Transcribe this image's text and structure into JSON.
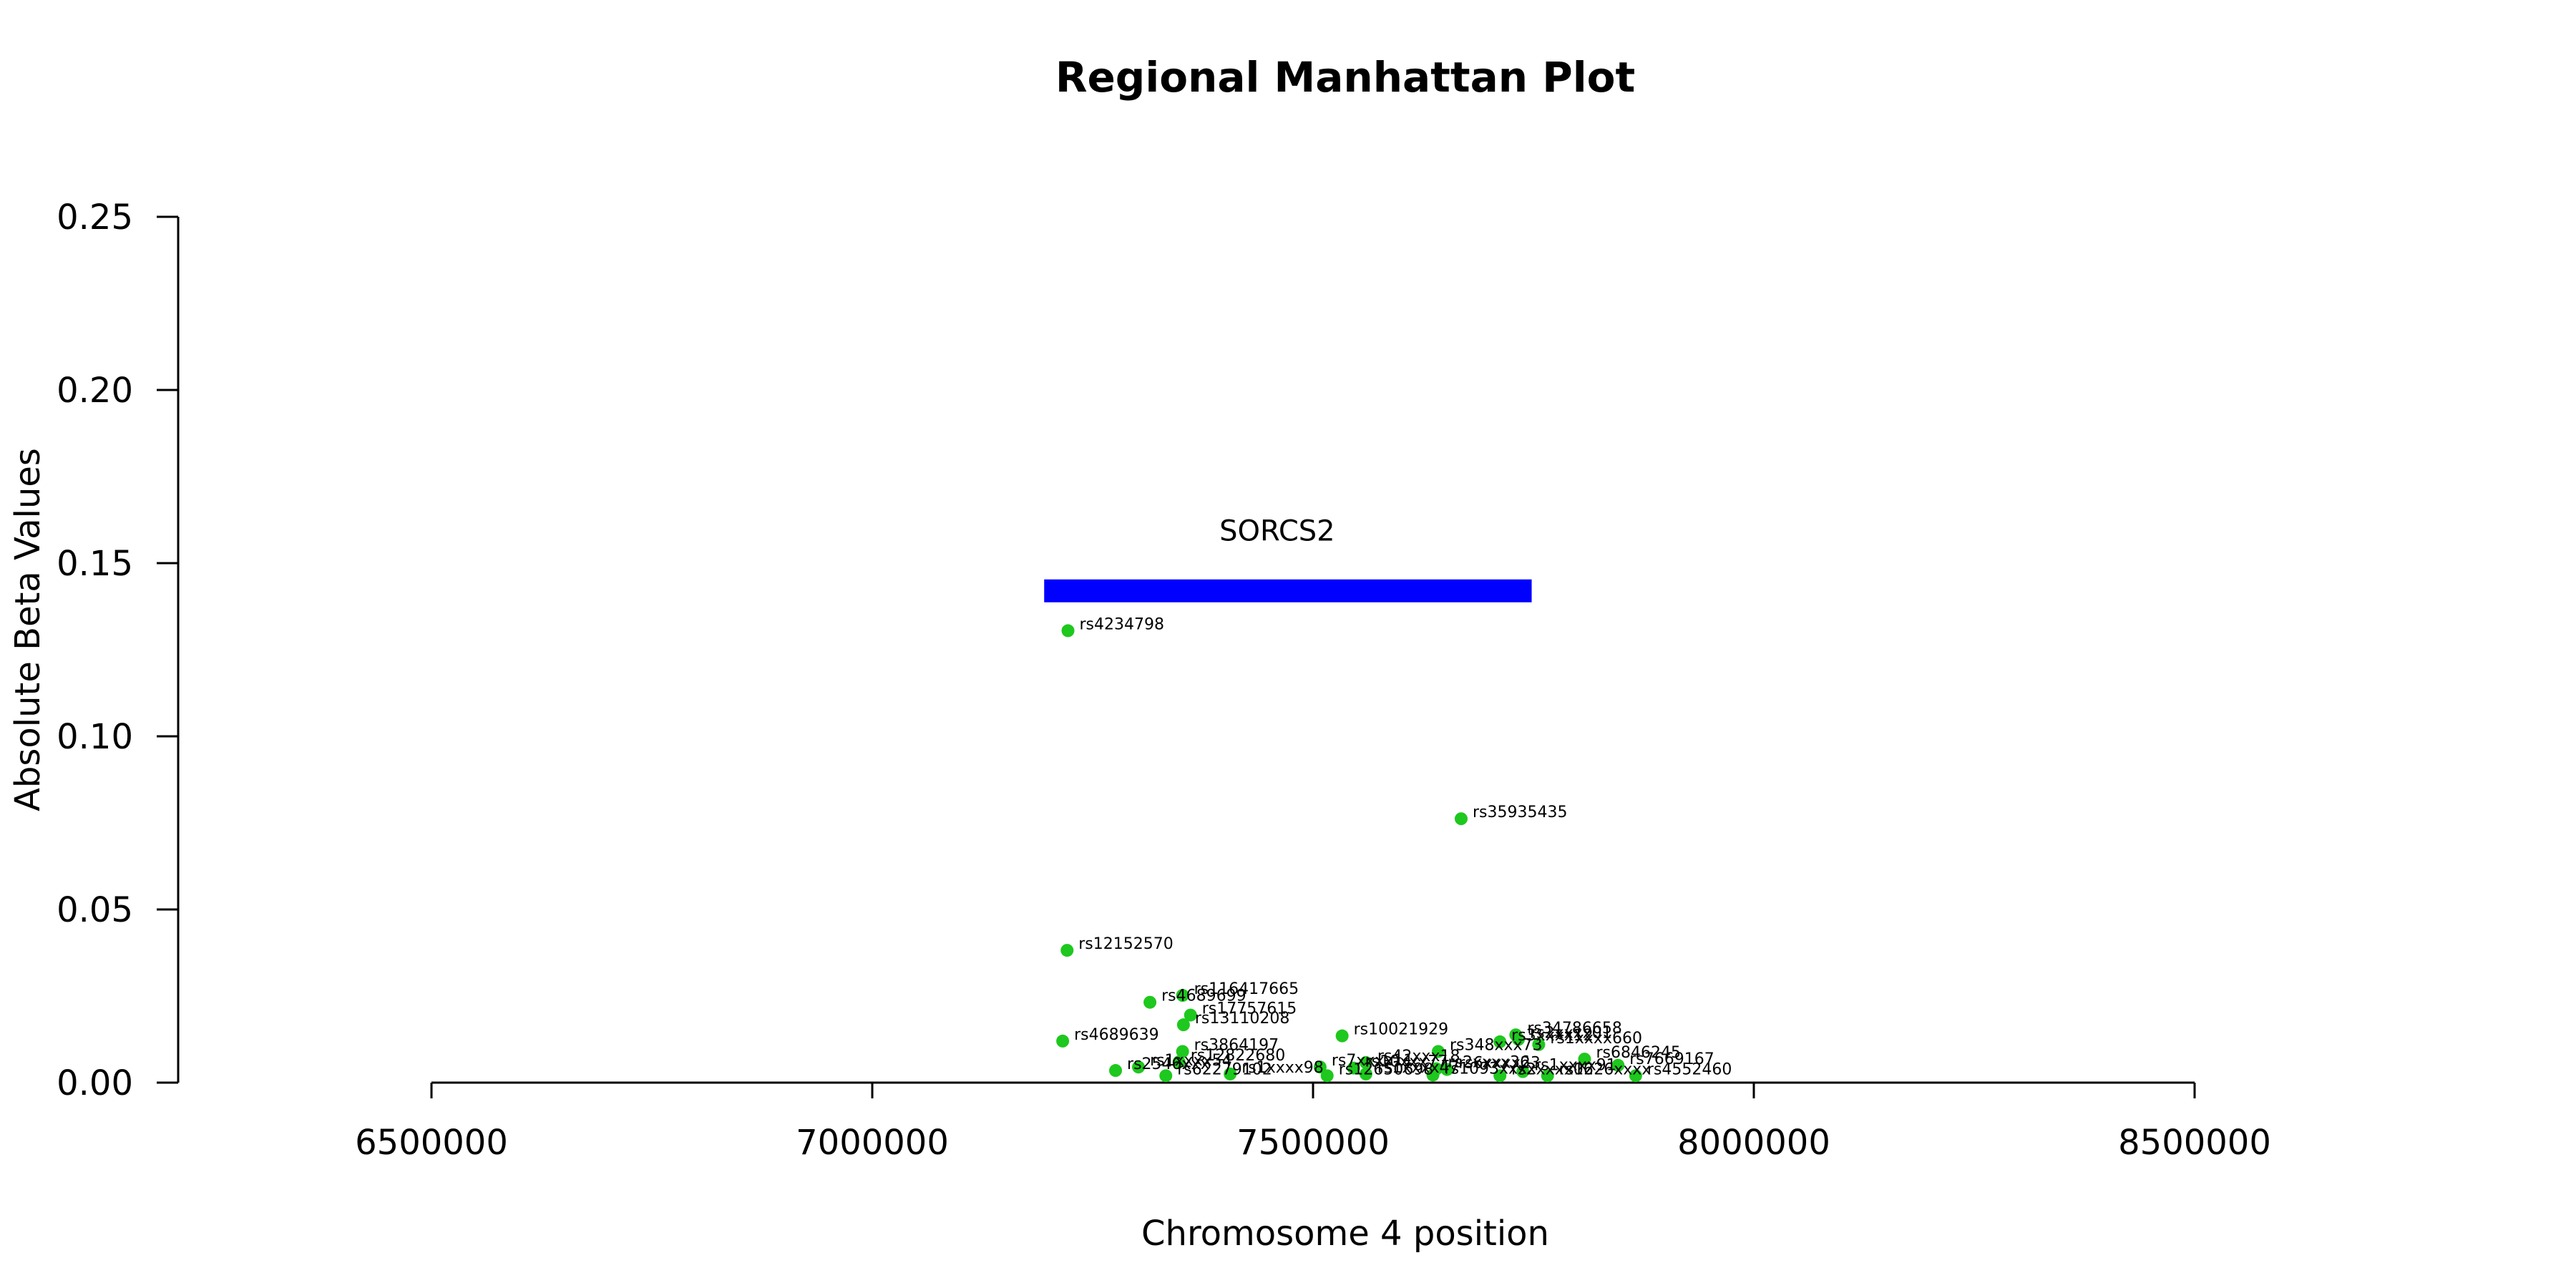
{
  "chart_data": {
    "type": "scatter",
    "title": "Regional Manhattan Plot",
    "xlabel": "Chromosome 4 position",
    "ylabel": "Absolute Beta Values",
    "xlim": [
      6500000,
      8500000
    ],
    "ylim": [
      0,
      0.25
    ],
    "x_ticks": [
      "6500000",
      "7000000",
      "7500000",
      "8000000",
      "8500000"
    ],
    "y_ticks": [
      "0.00",
      "0.05",
      "0.10",
      "0.15",
      "0.20",
      "0.25"
    ],
    "point_color": "#1ec81e",
    "gene": {
      "name": "SORCS2",
      "start": 7195000,
      "end": 7748000,
      "y": 0.142,
      "color": "#0000ff"
    },
    "points": [
      {
        "label": "rs4234798",
        "x": 7222000,
        "y": 0.1305
      },
      {
        "label": "rs35935435",
        "x": 7668000,
        "y": 0.0762
      },
      {
        "label": "rs12152570",
        "x": 7221000,
        "y": 0.0382
      },
      {
        "label": "rs116417665",
        "x": 7352000,
        "y": 0.0252
      },
      {
        "label": "rs4689699",
        "x": 7315000,
        "y": 0.0232
      },
      {
        "label": "rs17757615",
        "x": 7361000,
        "y": 0.0195
      },
      {
        "label": "rs13110208",
        "x": 7353000,
        "y": 0.0167
      },
      {
        "label": "rs10021929",
        "x": 7533000,
        "y": 0.0135
      },
      {
        "label": "rs4689639",
        "x": 7216000,
        "y": 0.012
      },
      {
        "label": "rs34786658",
        "x": 7730000,
        "y": 0.0138
      },
      {
        "label": "rs2xxxx01",
        "x": 7733000,
        "y": 0.0125
      },
      {
        "label": "rs3xxxx12",
        "x": 7712000,
        "y": 0.0118
      },
      {
        "label": "rs1xxxx660",
        "x": 7756000,
        "y": 0.011
      },
      {
        "label": "rs3864197",
        "x": 7352000,
        "y": 0.009
      },
      {
        "label": "rs348xxx73",
        "x": 7642000,
        "y": 0.009
      },
      {
        "label": "rs6846245",
        "x": 7808000,
        "y": 0.0068
      },
      {
        "label": "rs12822680",
        "x": 7348000,
        "y": 0.006
      },
      {
        "label": "rs42xxx18",
        "x": 7560000,
        "y": 0.0058
      },
      {
        "label": "rs7669167",
        "x": 7846000,
        "y": 0.005
      },
      {
        "label": "rs1xxxx54",
        "x": 7302000,
        "y": 0.0045
      },
      {
        "label": "rs7xxxx11",
        "x": 7508000,
        "y": 0.0045
      },
      {
        "label": "rs10xxx77",
        "x": 7546000,
        "y": 0.0042
      },
      {
        "label": "rs2xxxx36",
        "x": 7640000,
        "y": 0.004
      },
      {
        "label": "rs6xxxx23",
        "x": 7652000,
        "y": 0.0038
      },
      {
        "label": "rs2546xxx",
        "x": 7276000,
        "y": 0.0035
      },
      {
        "label": "rs1xxxx91",
        "x": 7738000,
        "y": 0.0032
      },
      {
        "label": "rs62279102",
        "x": 7333000,
        "y": 0.002
      },
      {
        "label": "rs1xxxx98",
        "x": 7406000,
        "y": 0.0025
      },
      {
        "label": "rs12650698",
        "x": 7516000,
        "y": 0.002
      },
      {
        "label": "rs1xxxx47",
        "x": 7560000,
        "y": 0.0025
      },
      {
        "label": "rs1093xxxx",
        "x": 7636000,
        "y": 0.0022
      },
      {
        "label": "rs2xxxx06",
        "x": 7712000,
        "y": 0.002
      },
      {
        "label": "rs1226xxxx",
        "x": 7766000,
        "y": 0.002
      },
      {
        "label": "rs4552460",
        "x": 7866000,
        "y": 0.002
      }
    ]
  }
}
